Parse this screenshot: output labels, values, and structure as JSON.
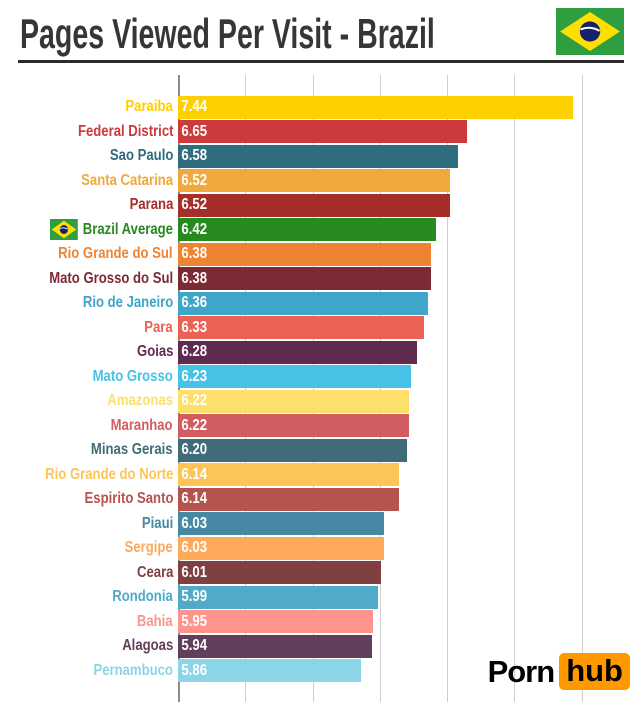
{
  "header": {
    "title": "Pages Viewed Per Visit - Brazil",
    "flag_icon": "brazil-flag-icon"
  },
  "chart_data": {
    "type": "bar",
    "orientation": "horizontal",
    "title": "Pages Viewed Per Visit - Brazil",
    "xlabel": "",
    "ylabel": "",
    "axis": {
      "min": 4.5,
      "max": 7.5,
      "grid_step": 0.5,
      "grid": true,
      "tick_labels_visible": false,
      "grid_color": "#cfcfcf",
      "axis_color": "#8c8c8c"
    },
    "value_label_color": "#ffffff",
    "rows": [
      {
        "label": "Paraiba",
        "value": 7.44,
        "display": "7.44",
        "color": "#FFD000",
        "flag": false
      },
      {
        "label": "Federal District",
        "value": 6.65,
        "display": "6.65",
        "color": "#CC3A3C",
        "flag": false
      },
      {
        "label": "Sao Paulo",
        "value": 6.58,
        "display": "6.58",
        "color": "#2F6C7E",
        "flag": false
      },
      {
        "label": "Santa Catarina",
        "value": 6.52,
        "display": "6.52",
        "color": "#EFA93F",
        "flag": false
      },
      {
        "label": "Parana",
        "value": 6.52,
        "display": "6.52",
        "color": "#A52F28",
        "flag": false
      },
      {
        "label": "Brazil Average",
        "value": 6.42,
        "display": "6.42",
        "color": "#268A1E",
        "flag": true
      },
      {
        "label": "Rio Grande do Sul",
        "value": 6.38,
        "display": "6.38",
        "color": "#EE8433",
        "flag": false
      },
      {
        "label": "Mato Grosso do Sul",
        "value": 6.38,
        "display": "6.38",
        "color": "#7C2B35",
        "flag": false
      },
      {
        "label": "Rio de Janeiro",
        "value": 6.36,
        "display": "6.36",
        "color": "#3FA5C9",
        "flag": false
      },
      {
        "label": "Para",
        "value": 6.33,
        "display": "6.33",
        "color": "#EB6153",
        "flag": false
      },
      {
        "label": "Goias",
        "value": 6.28,
        "display": "6.28",
        "color": "#602A50",
        "flag": false
      },
      {
        "label": "Mato Grosso",
        "value": 6.23,
        "display": "6.23",
        "color": "#47C2E6",
        "flag": false
      },
      {
        "label": "Amazonas",
        "value": 6.22,
        "display": "6.22",
        "color": "#FDDF6B",
        "flag": false
      },
      {
        "label": "Maranhao",
        "value": 6.22,
        "display": "6.22",
        "color": "#D25D60",
        "flag": false
      },
      {
        "label": "Minas Gerais",
        "value": 6.2,
        "display": "6.20",
        "color": "#406C79",
        "flag": false
      },
      {
        "label": "Rio Grande do Norte",
        "value": 6.14,
        "display": "6.14",
        "color": "#FCC557",
        "flag": false
      },
      {
        "label": "Espirito Santo",
        "value": 6.14,
        "display": "6.14",
        "color": "#B5534E",
        "flag": false
      },
      {
        "label": "Piaui",
        "value": 6.03,
        "display": "6.03",
        "color": "#4788A4",
        "flag": false
      },
      {
        "label": "Sergipe",
        "value": 6.03,
        "display": "6.03",
        "color": "#FDAA5B",
        "flag": false
      },
      {
        "label": "Ceara",
        "value": 6.01,
        "display": "6.01",
        "color": "#803F41",
        "flag": false
      },
      {
        "label": "Rondonia",
        "value": 5.99,
        "display": "5.99",
        "color": "#51AAC8",
        "flag": false
      },
      {
        "label": "Bahia",
        "value": 5.95,
        "display": "5.95",
        "color": "#FE948C",
        "flag": false
      },
      {
        "label": "Alagoas",
        "value": 5.94,
        "display": "5.94",
        "color": "#5F3F5A",
        "flag": false
      },
      {
        "label": "Pernambuco",
        "value": 5.86,
        "display": "5.86",
        "color": "#8CD4E8",
        "flag": false
      }
    ]
  },
  "footer": {
    "brand_prefix": "Porn",
    "brand_suffix": "hub",
    "accent_color": "#FF9900"
  }
}
